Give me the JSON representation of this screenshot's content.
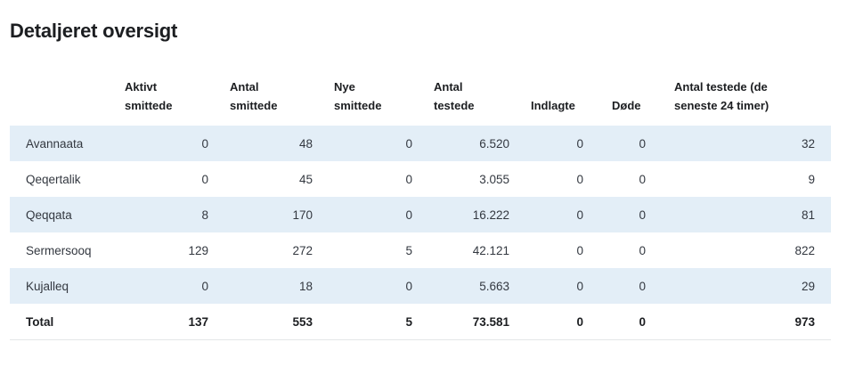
{
  "page": {
    "title": "Detaljeret oversigt"
  },
  "table": {
    "headers": {
      "active": [
        "Aktivt",
        "smittede"
      ],
      "total_cases": [
        "Antal",
        "smittede"
      ],
      "new_cases": [
        "Nye",
        "smittede"
      ],
      "tested": [
        "Antal",
        "testede"
      ],
      "hospitalized": [
        "Indlagte"
      ],
      "deaths": [
        "Døde"
      ],
      "tested_24h": [
        "Antal testede (de",
        "seneste 24 timer)"
      ]
    },
    "rows": [
      {
        "region": "Avannaata",
        "active": "0",
        "total_cases": "48",
        "new_cases": "0",
        "tested": "6.520",
        "hospitalized": "0",
        "deaths": "0",
        "tested_24h": "32"
      },
      {
        "region": "Qeqertalik",
        "active": "0",
        "total_cases": "45",
        "new_cases": "0",
        "tested": "3.055",
        "hospitalized": "0",
        "deaths": "0",
        "tested_24h": "9"
      },
      {
        "region": "Qeqqata",
        "active": "8",
        "total_cases": "170",
        "new_cases": "0",
        "tested": "16.222",
        "hospitalized": "0",
        "deaths": "0",
        "tested_24h": "81"
      },
      {
        "region": "Sermersooq",
        "active": "129",
        "total_cases": "272",
        "new_cases": "5",
        "tested": "42.121",
        "hospitalized": "0",
        "deaths": "0",
        "tested_24h": "822"
      },
      {
        "region": "Kujalleq",
        "active": "0",
        "total_cases": "18",
        "new_cases": "0",
        "tested": "5.663",
        "hospitalized": "0",
        "deaths": "0",
        "tested_24h": "29"
      }
    ],
    "total": {
      "region": "Total",
      "active": "137",
      "total_cases": "553",
      "new_cases": "5",
      "tested": "73.581",
      "hospitalized": "0",
      "deaths": "0",
      "tested_24h": "973"
    }
  },
  "colors": {
    "row_shade": "#e3eef7",
    "text": "#333840",
    "heading": "#1c1e21"
  }
}
